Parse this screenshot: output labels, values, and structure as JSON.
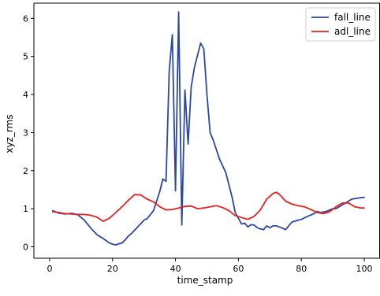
{
  "chart_data": {
    "type": "line",
    "title": "",
    "xlabel": "time_stamp",
    "ylabel": "xyz_rms",
    "xlim": [
      -5,
      105
    ],
    "ylim": [
      -0.3,
      6.4
    ],
    "xticks": [
      0,
      20,
      40,
      60,
      80,
      100
    ],
    "yticks": [
      0,
      1,
      2,
      3,
      4,
      5,
      6
    ],
    "grid": false,
    "legend_position": "top-right",
    "series": [
      {
        "name": "fall_line",
        "color": "#2a46a6",
        "x": [
          1,
          3,
          5,
          7,
          9,
          11,
          13,
          15,
          17,
          19,
          20,
          21,
          22,
          23,
          24,
          25,
          26,
          28,
          30,
          31,
          33,
          35,
          36,
          37,
          38,
          39,
          40,
          41,
          42,
          43,
          44,
          45,
          46,
          48,
          49,
          50,
          51,
          52,
          54,
          56,
          58,
          59,
          61,
          62,
          63,
          64,
          65,
          66,
          67,
          68,
          69,
          70,
          71,
          72,
          73,
          74,
          75,
          77,
          79,
          80,
          82,
          84,
          85,
          86,
          88,
          90,
          91,
          93,
          95,
          96,
          98,
          100
        ],
        "y": [
          0.95,
          0.88,
          0.86,
          0.88,
          0.84,
          0.7,
          0.5,
          0.32,
          0.22,
          0.1,
          0.07,
          0.05,
          0.08,
          0.1,
          0.18,
          0.28,
          0.35,
          0.52,
          0.7,
          0.74,
          0.95,
          1.45,
          1.78,
          1.72,
          4.6,
          5.57,
          1.47,
          6.17,
          0.57,
          4.12,
          2.7,
          4.2,
          4.7,
          5.35,
          5.2,
          4.0,
          3.0,
          2.8,
          2.3,
          1.95,
          1.3,
          0.9,
          0.6,
          0.62,
          0.52,
          0.58,
          0.57,
          0.5,
          0.47,
          0.45,
          0.55,
          0.5,
          0.55,
          0.55,
          0.52,
          0.49,
          0.45,
          0.65,
          0.7,
          0.72,
          0.8,
          0.87,
          0.93,
          0.9,
          0.93,
          1.0,
          1.0,
          1.1,
          1.2,
          1.25,
          1.28,
          1.3
        ]
      },
      {
        "name": "adl_line",
        "color": "#e8201c",
        "x": [
          1,
          3,
          5,
          7,
          9,
          11,
          13,
          15,
          17,
          19,
          21,
          23,
          25,
          27,
          29,
          31,
          33,
          35,
          37,
          39,
          41,
          43,
          45,
          47,
          49,
          51,
          53,
          55,
          57,
          59,
          61,
          63,
          65,
          67,
          69,
          71,
          72,
          73,
          75,
          77,
          79,
          81,
          83,
          85,
          87,
          89,
          91,
          93,
          95,
          97,
          99,
          100
        ],
        "y": [
          0.92,
          0.9,
          0.87,
          0.86,
          0.85,
          0.85,
          0.83,
          0.78,
          0.67,
          0.75,
          0.9,
          1.05,
          1.22,
          1.37,
          1.36,
          1.25,
          1.18,
          1.05,
          0.97,
          0.98,
          1.02,
          1.06,
          1.07,
          1.0,
          1.02,
          1.05,
          1.08,
          1.03,
          0.95,
          0.82,
          0.77,
          0.72,
          0.8,
          0.97,
          1.25,
          1.4,
          1.43,
          1.38,
          1.2,
          1.12,
          1.08,
          1.05,
          0.98,
          0.9,
          0.87,
          0.92,
          1.05,
          1.15,
          1.15,
          1.05,
          1.02,
          1.02
        ]
      }
    ]
  }
}
